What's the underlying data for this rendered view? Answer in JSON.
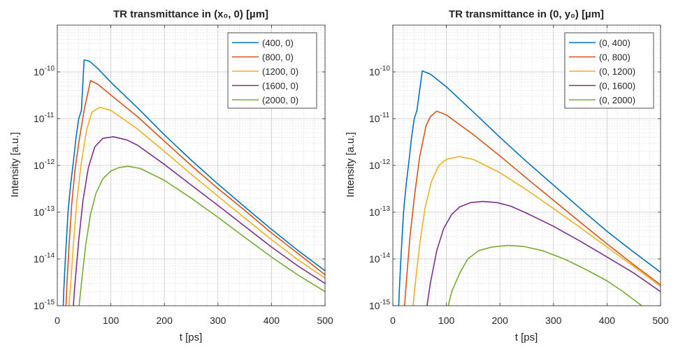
{
  "chart_data": [
    {
      "type": "line",
      "title": "TR transmittance in (x₀, 0) [µm]",
      "xlabel": "t [ps]",
      "ylabel": "Intensity [a.u.]",
      "xlim": [
        0,
        500
      ],
      "ylim": [
        1e-15,
        1e-09
      ],
      "yscale": "log",
      "grid": true,
      "minor_grid": true,
      "legend_position": "top-right",
      "xticks": [
        0,
        100,
        200,
        300,
        400,
        500
      ],
      "xtick_labels": [
        "0",
        "100",
        "200",
        "300",
        "400",
        "500"
      ],
      "yticks": [
        1e-10,
        1e-11,
        1e-12,
        1e-13,
        1e-14,
        1e-15
      ],
      "ytick_labels": [
        {
          "base": "10",
          "exp": "-10"
        },
        {
          "base": "10",
          "exp": "-11"
        },
        {
          "base": "10",
          "exp": "-12"
        },
        {
          "base": "10",
          "exp": "-13"
        },
        {
          "base": "10",
          "exp": "-14"
        },
        {
          "base": "10",
          "exp": "-15"
        }
      ],
      "series": [
        {
          "name": "(400, 0)",
          "color": "#0072BD",
          "x": [
            10,
            12,
            15,
            20,
            25,
            30,
            35,
            40,
            45,
            50,
            60,
            75,
            100,
            150,
            200,
            250,
            300,
            350,
            400,
            450,
            500
          ],
          "y": [
            5e-16,
            2e-15,
            1e-14,
            1e-13,
            4e-13,
            1.2e-12,
            4e-12,
            1e-11,
            1.5e-11,
            1.8e-10,
            1.7e-10,
            1.2e-10,
            6e-11,
            1.7e-11,
            4.5e-12,
            1.3e-12,
            4e-13,
            1.3e-13,
            4.3e-14,
            1.5e-14,
            5.6e-15
          ]
        },
        {
          "name": "(800, 0)",
          "color": "#D95319",
          "x": [
            15,
            18,
            22,
            27,
            33,
            40,
            50,
            62,
            75,
            100,
            150,
            200,
            250,
            300,
            350,
            400,
            450,
            500
          ],
          "y": [
            5e-16,
            3e-15,
            2e-14,
            1.5e-13,
            8e-13,
            3e-12,
            1.5e-11,
            6.5e-11,
            5.5e-11,
            3.2e-11,
            1.1e-11,
            3.3e-12,
            1e-12,
            3.2e-13,
            1.1e-13,
            3.6e-14,
            1.3e-14,
            4.6e-15
          ]
        },
        {
          "name": "(1200, 0)",
          "color": "#EDB120",
          "x": [
            20,
            25,
            30,
            36,
            44,
            55,
            65,
            80,
            100,
            150,
            200,
            250,
            300,
            350,
            400,
            450,
            500
          ],
          "y": [
            5e-16,
            3e-15,
            2e-14,
            1.5e-13,
            1e-12,
            6e-12,
            1.4e-11,
            1.75e-11,
            1.5e-11,
            6e-12,
            2e-12,
            6.5e-13,
            2.2e-13,
            7.5e-14,
            2.6e-14,
            9.5e-15,
            3.9e-15
          ]
        },
        {
          "name": "(1600, 0)",
          "color": "#7E2F8E",
          "x": [
            28,
            33,
            40,
            48,
            58,
            70,
            85,
            105,
            130,
            150,
            200,
            250,
            300,
            350,
            400,
            450,
            500
          ],
          "y": [
            5e-16,
            3e-15,
            2.5e-14,
            1.8e-13,
            9e-13,
            2.5e-12,
            3.8e-12,
            4.1e-12,
            3.5e-12,
            2.7e-12,
            1.05e-12,
            3.8e-13,
            1.4e-13,
            5e-14,
            1.8e-14,
            7e-15,
            3e-15
          ]
        },
        {
          "name": "(2000, 0)",
          "color": "#77AC30",
          "x": [
            38,
            45,
            53,
            62,
            72,
            85,
            100,
            115,
            132,
            155,
            200,
            250,
            300,
            350,
            400,
            450,
            500
          ],
          "y": [
            5e-16,
            3e-15,
            2e-14,
            9e-14,
            2.5e-13,
            5.2e-13,
            7.6e-13,
            9e-13,
            9.6e-13,
            8.6e-13,
            4.8e-13,
            2e-13,
            7.8e-14,
            2.9e-14,
            1.1e-14,
            4.5e-15,
            2e-15
          ]
        }
      ]
    },
    {
      "type": "line",
      "title": "TR transmittance in (0, y₀) [µm]",
      "xlabel": "t [ps]",
      "ylabel": "Intensity [a.u.]",
      "xlim": [
        0,
        500
      ],
      "ylim": [
        1e-15,
        1e-09
      ],
      "yscale": "log",
      "grid": true,
      "minor_grid": true,
      "legend_position": "top-right",
      "xticks": [
        0,
        100,
        200,
        300,
        400,
        500
      ],
      "xtick_labels": [
        "0",
        "100",
        "200",
        "300",
        "400",
        "500"
      ],
      "yticks": [
        1e-10,
        1e-11,
        1e-12,
        1e-13,
        1e-14,
        1e-15
      ],
      "ytick_labels": [
        {
          "base": "10",
          "exp": "-10"
        },
        {
          "base": "10",
          "exp": "-11"
        },
        {
          "base": "10",
          "exp": "-12"
        },
        {
          "base": "10",
          "exp": "-13"
        },
        {
          "base": "10",
          "exp": "-14"
        },
        {
          "base": "10",
          "exp": "-15"
        }
      ],
      "series": [
        {
          "name": "(0, 400)",
          "color": "#0072BD",
          "x": [
            10,
            12,
            15,
            20,
            25,
            30,
            35,
            40,
            45,
            55,
            70,
            100,
            150,
            200,
            250,
            300,
            350,
            400,
            450,
            500
          ],
          "y": [
            5e-16,
            2e-15,
            1e-14,
            1e-13,
            4e-13,
            1.2e-12,
            4e-12,
            1e-11,
            1.5e-11,
            1.05e-10,
            9e-11,
            4.8e-11,
            1.4e-11,
            4e-12,
            1.2e-12,
            3.8e-13,
            1.2e-13,
            3.9e-14,
            1.4e-14,
            5.2e-15
          ]
        },
        {
          "name": "(0, 800)",
          "color": "#D95319",
          "x": [
            20,
            25,
            32,
            40,
            50,
            62,
            70,
            82,
            100,
            150,
            200,
            250,
            300,
            350,
            400,
            450,
            500
          ],
          "y": [
            5e-16,
            3e-15,
            3e-14,
            2e-13,
            1.5e-12,
            7e-12,
            1.1e-11,
            1.45e-11,
            1.2e-11,
            4.6e-12,
            1.6e-12,
            5.3e-13,
            1.8e-13,
            6.1e-14,
            2.1e-14,
            7.5e-15,
            2.8e-15
          ]
        },
        {
          "name": "(0, 1200)",
          "color": "#EDB120",
          "x": [
            35,
            42,
            50,
            60,
            72,
            86,
            100,
            123,
            150,
            200,
            250,
            300,
            350,
            400,
            450,
            500
          ],
          "y": [
            5e-16,
            3e-15,
            2e-14,
            1.2e-13,
            4.5e-13,
            1e-12,
            1.35e-12,
            1.55e-12,
            1.35e-12,
            7e-13,
            3e-13,
            1.2e-13,
            4.7e-14,
            1.8e-14,
            6.9e-15,
            2.6e-15
          ]
        },
        {
          "name": "(0, 1600)",
          "color": "#7E2F8E",
          "x": [
            60,
            70,
            82,
            95,
            110,
            125,
            145,
            168,
            195,
            220,
            250,
            300,
            350,
            400,
            450,
            500
          ],
          "y": [
            5e-16,
            3e-15,
            1.5e-14,
            4.5e-14,
            9e-14,
            1.3e-13,
            1.6e-13,
            1.7e-13,
            1.6e-13,
            1.35e-13,
            9.5e-14,
            5e-14,
            2.4e-14,
            1.1e-14,
            5e-15,
            2e-15
          ]
        },
        {
          "name": "(0, 2000)",
          "color": "#77AC30",
          "x": [
            97,
            110,
            125,
            140,
            160,
            185,
            215,
            245,
            280,
            320,
            360,
            400,
            430,
            465
          ],
          "y": [
            5e-16,
            2e-15,
            5e-15,
            1e-14,
            1.5e-14,
            1.8e-14,
            1.95e-14,
            1.85e-14,
            1.5e-14,
            1e-14,
            6e-15,
            3.4e-15,
            2e-15,
            1e-15
          ]
        }
      ]
    }
  ]
}
